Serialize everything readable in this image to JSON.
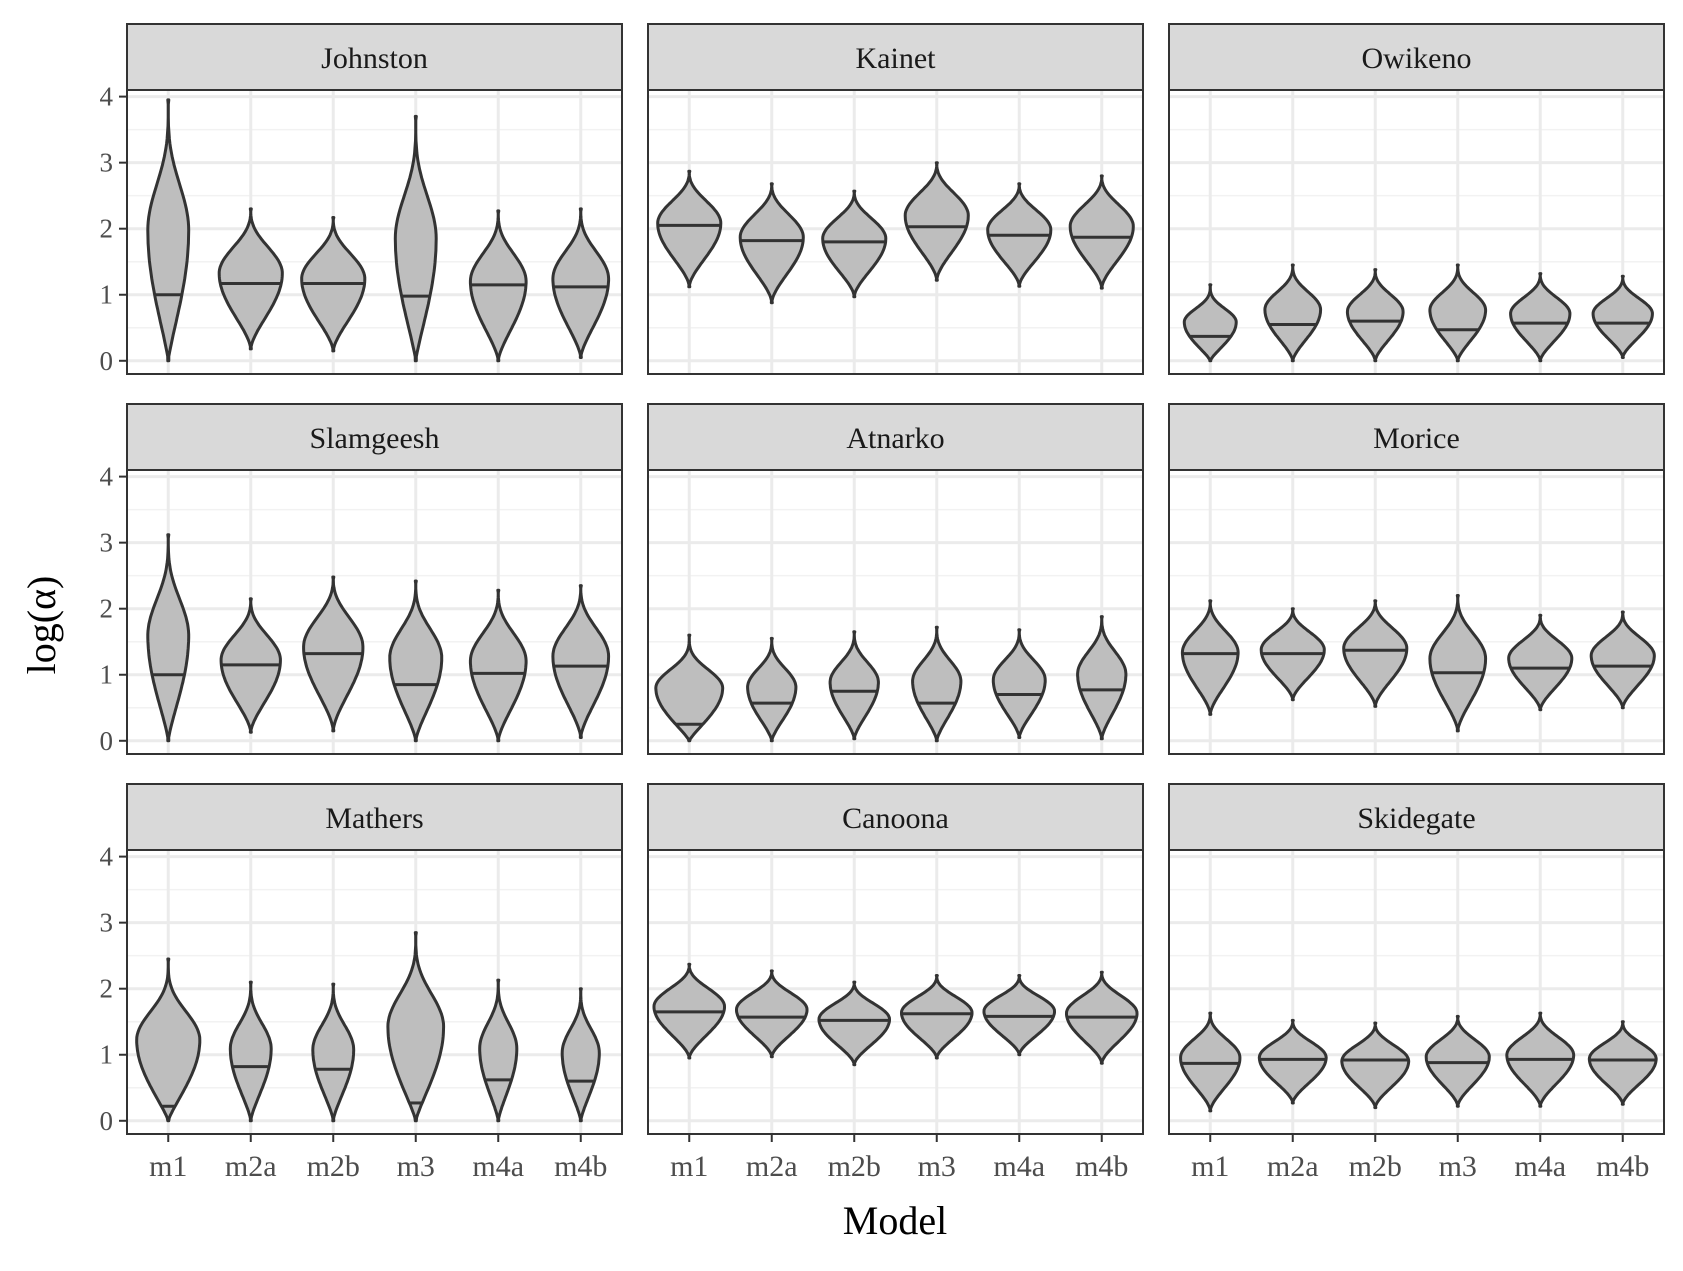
{
  "chart_data": {
    "type": "violin",
    "xlabel": "Model",
    "ylabel": "log(α)",
    "categories": [
      "m1",
      "m2a",
      "m2b",
      "m3",
      "m4a",
      "m4b"
    ],
    "y_ticks": [
      "0",
      "1",
      "2",
      "3",
      "4"
    ],
    "ylim": [
      -0.2,
      4.1
    ],
    "grid": true,
    "fill_color": "#bebebe",
    "outline_color": "#333333",
    "strip_color": "#d9d9d9",
    "panels": [
      {
        "name": "Johnston",
        "violins": [
          {
            "min": 0.0,
            "max": 3.95,
            "median": 1.0,
            "width": 0.55,
            "skew": 1.0
          },
          {
            "min": 0.18,
            "max": 2.3,
            "median": 1.17,
            "width": 0.85,
            "skew": 0.6
          },
          {
            "min": 0.15,
            "max": 2.17,
            "median": 1.17,
            "width": 0.85,
            "skew": 0.6
          },
          {
            "min": 0.0,
            "max": 3.7,
            "median": 0.98,
            "width": 0.55,
            "skew": 1.0
          },
          {
            "min": 0.0,
            "max": 2.27,
            "median": 1.15,
            "width": 0.75,
            "skew": 0.7
          },
          {
            "min": 0.05,
            "max": 2.3,
            "median": 1.12,
            "width": 0.75,
            "skew": 0.7
          }
        ]
      },
      {
        "name": "Kainet",
        "violins": [
          {
            "min": 1.12,
            "max": 2.87,
            "median": 2.05,
            "width": 0.85,
            "skew": 0.5
          },
          {
            "min": 0.88,
            "max": 2.68,
            "median": 1.82,
            "width": 0.85,
            "skew": 0.5
          },
          {
            "min": 0.97,
            "max": 2.57,
            "median": 1.8,
            "width": 0.85,
            "skew": 0.5
          },
          {
            "min": 1.22,
            "max": 3.0,
            "median": 2.03,
            "width": 0.85,
            "skew": 0.5
          },
          {
            "min": 1.13,
            "max": 2.68,
            "median": 1.9,
            "width": 0.85,
            "skew": 0.5
          },
          {
            "min": 1.1,
            "max": 2.8,
            "median": 1.87,
            "width": 0.85,
            "skew": 0.5
          }
        ]
      },
      {
        "name": "Owikeno",
        "violins": [
          {
            "min": 0.0,
            "max": 1.15,
            "median": 0.37,
            "width": 0.7,
            "skew": 0.9
          },
          {
            "min": 0.0,
            "max": 1.45,
            "median": 0.55,
            "width": 0.75,
            "skew": 0.65
          },
          {
            "min": 0.0,
            "max": 1.38,
            "median": 0.6,
            "width": 0.75,
            "skew": 0.6
          },
          {
            "min": 0.0,
            "max": 1.45,
            "median": 0.47,
            "width": 0.75,
            "skew": 0.7
          },
          {
            "min": 0.0,
            "max": 1.32,
            "median": 0.57,
            "width": 0.8,
            "skew": 0.6
          },
          {
            "min": 0.05,
            "max": 1.28,
            "median": 0.57,
            "width": 0.8,
            "skew": 0.6
          }
        ]
      },
      {
        "name": "Slamgeesh",
        "violins": [
          {
            "min": 0.0,
            "max": 3.12,
            "median": 1.0,
            "width": 0.55,
            "skew": 0.9
          },
          {
            "min": 0.13,
            "max": 2.15,
            "median": 1.15,
            "width": 0.8,
            "skew": 0.6
          },
          {
            "min": 0.15,
            "max": 2.48,
            "median": 1.32,
            "width": 0.8,
            "skew": 0.55
          },
          {
            "min": 0.0,
            "max": 2.42,
            "median": 0.85,
            "width": 0.7,
            "skew": 0.8
          },
          {
            "min": 0.0,
            "max": 2.28,
            "median": 1.02,
            "width": 0.75,
            "skew": 0.7
          },
          {
            "min": 0.05,
            "max": 2.35,
            "median": 1.13,
            "width": 0.75,
            "skew": 0.65
          }
        ]
      },
      {
        "name": "Atnarko",
        "violins": [
          {
            "min": 0.0,
            "max": 1.6,
            "median": 0.25,
            "width": 0.9,
            "skew": 1.0
          },
          {
            "min": 0.0,
            "max": 1.55,
            "median": 0.57,
            "width": 0.65,
            "skew": 0.75
          },
          {
            "min": 0.03,
            "max": 1.65,
            "median": 0.75,
            "width": 0.65,
            "skew": 0.7
          },
          {
            "min": 0.0,
            "max": 1.72,
            "median": 0.57,
            "width": 0.65,
            "skew": 0.75
          },
          {
            "min": 0.05,
            "max": 1.68,
            "median": 0.7,
            "width": 0.7,
            "skew": 0.65
          },
          {
            "min": 0.03,
            "max": 1.88,
            "median": 0.77,
            "width": 0.65,
            "skew": 0.7
          }
        ]
      },
      {
        "name": "Morice",
        "violins": [
          {
            "min": 0.4,
            "max": 2.12,
            "median": 1.32,
            "width": 0.75,
            "skew": 0.55
          },
          {
            "min": 0.62,
            "max": 2.0,
            "median": 1.32,
            "width": 0.85,
            "skew": 0.5
          },
          {
            "min": 0.52,
            "max": 2.12,
            "median": 1.37,
            "width": 0.85,
            "skew": 0.5
          },
          {
            "min": 0.15,
            "max": 2.2,
            "median": 1.03,
            "width": 0.75,
            "skew": 0.65
          },
          {
            "min": 0.47,
            "max": 1.9,
            "median": 1.1,
            "width": 0.85,
            "skew": 0.55
          },
          {
            "min": 0.5,
            "max": 1.95,
            "median": 1.13,
            "width": 0.85,
            "skew": 0.55
          }
        ]
      },
      {
        "name": "Mathers",
        "violins": [
          {
            "min": 0.0,
            "max": 2.45,
            "median": 0.22,
            "width": 0.85,
            "skew": 1.0
          },
          {
            "min": 0.0,
            "max": 2.1,
            "median": 0.82,
            "width": 0.55,
            "skew": 0.8
          },
          {
            "min": 0.0,
            "max": 2.07,
            "median": 0.78,
            "width": 0.55,
            "skew": 0.8
          },
          {
            "min": 0.0,
            "max": 2.85,
            "median": 0.27,
            "width": 0.75,
            "skew": 1.0
          },
          {
            "min": 0.0,
            "max": 2.13,
            "median": 0.62,
            "width": 0.5,
            "skew": 0.85
          },
          {
            "min": 0.0,
            "max": 2.0,
            "median": 0.6,
            "width": 0.5,
            "skew": 0.85
          }
        ]
      },
      {
        "name": "Canoona",
        "violins": [
          {
            "min": 0.95,
            "max": 2.37,
            "median": 1.65,
            "width": 0.95,
            "skew": 0.5
          },
          {
            "min": 0.97,
            "max": 2.27,
            "median": 1.57,
            "width": 0.95,
            "skew": 0.5
          },
          {
            "min": 0.85,
            "max": 2.1,
            "median": 1.52,
            "width": 0.95,
            "skew": 0.5
          },
          {
            "min": 0.95,
            "max": 2.2,
            "median": 1.62,
            "width": 0.95,
            "skew": 0.5
          },
          {
            "min": 1.0,
            "max": 2.2,
            "median": 1.58,
            "width": 0.95,
            "skew": 0.5
          },
          {
            "min": 0.87,
            "max": 2.25,
            "median": 1.57,
            "width": 0.95,
            "skew": 0.5
          }
        ]
      },
      {
        "name": "Skidegate",
        "violins": [
          {
            "min": 0.15,
            "max": 1.63,
            "median": 0.87,
            "width": 0.8,
            "skew": 0.55
          },
          {
            "min": 0.27,
            "max": 1.52,
            "median": 0.93,
            "width": 0.9,
            "skew": 0.5
          },
          {
            "min": 0.2,
            "max": 1.48,
            "median": 0.92,
            "width": 0.9,
            "skew": 0.5
          },
          {
            "min": 0.22,
            "max": 1.58,
            "median": 0.88,
            "width": 0.85,
            "skew": 0.5
          },
          {
            "min": 0.22,
            "max": 1.63,
            "median": 0.93,
            "width": 0.9,
            "skew": 0.5
          },
          {
            "min": 0.25,
            "max": 1.5,
            "median": 0.92,
            "width": 0.9,
            "skew": 0.5
          }
        ]
      }
    ]
  }
}
